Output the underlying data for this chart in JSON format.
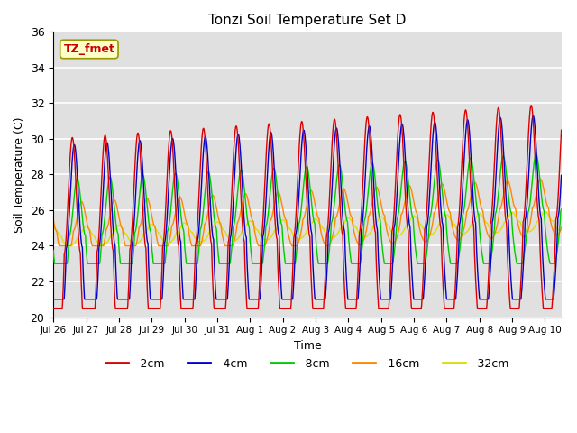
{
  "title": "Tonzi Soil Temperature Set D",
  "xlabel": "Time",
  "ylabel": "Soil Temperature (C)",
  "ylim": [
    20,
    36
  ],
  "annotation": "TZ_fmet",
  "annotation_color": "#cc0000",
  "annotation_bg": "#ffffcc",
  "line_colors": {
    "-2cm": "#dd0000",
    "-4cm": "#0000cc",
    "-8cm": "#00cc00",
    "-16cm": "#ff8800",
    "-32cm": "#dddd00"
  },
  "bg_color": "#e0e0e0",
  "grid_color": "#ffffff",
  "x_tick_labels": [
    "Jul 26",
    "Jul 27",
    "Jul 28",
    "Jul 29",
    "Jul 30",
    "Jul 31",
    "Aug 1",
    "Aug 2",
    "Aug 3",
    "Aug 4",
    "Aug 5",
    "Aug 6",
    "Aug 7",
    "Aug 8",
    "Aug 9",
    "Aug 10"
  ],
  "num_days": 15.5,
  "points_per_day": 96
}
